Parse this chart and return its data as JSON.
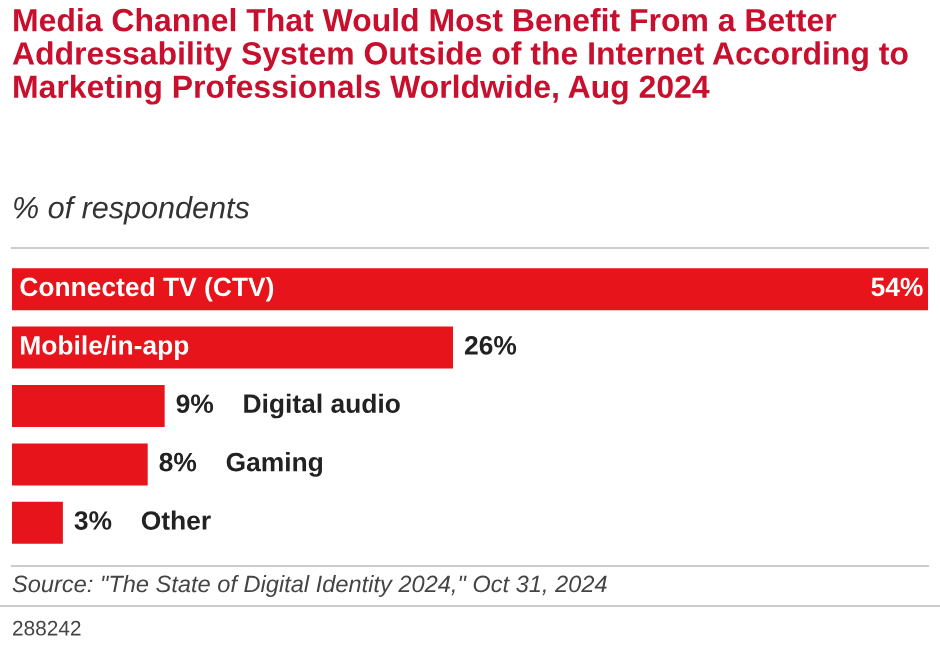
{
  "chart_data": {
    "type": "bar",
    "orientation": "horizontal",
    "title": "Media Channel That Would Most Benefit From a Better Addressability System Outside of the Internet According to Marketing Professionals Worldwide, Aug 2024",
    "subtitle": "% of respondents",
    "categories": [
      "Connected TV (CTV)",
      "Mobile/in-app",
      "Digital audio",
      "Gaming",
      "Other"
    ],
    "values": [
      54,
      26,
      9,
      8,
      3
    ],
    "value_labels": [
      "54%",
      "26%",
      "9%",
      "8%",
      "3%"
    ],
    "color": "#e8141b",
    "annotations": [
      "Source: \"The State of Digital Identity 2024,\" Oct 31, 2024",
      "288242"
    ]
  }
}
